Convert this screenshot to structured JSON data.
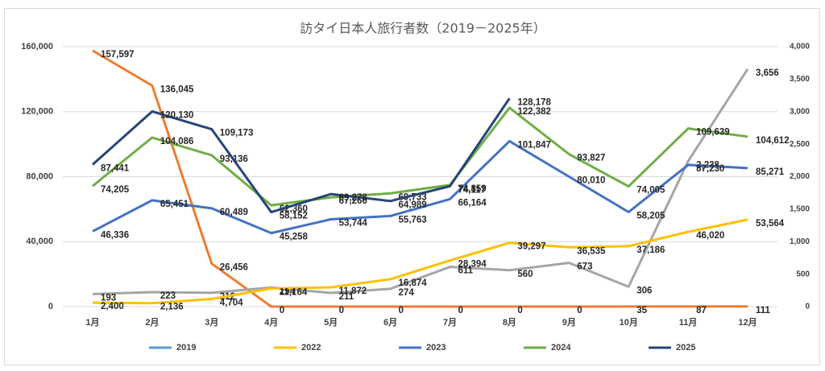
{
  "chart_data": {
    "type": "line",
    "title": "訪タイ日本人旅行者数（2019－2025年）",
    "categories": [
      "1月",
      "2月",
      "3月",
      "4月",
      "5月",
      "6月",
      "7月",
      "8月",
      "9月",
      "10月",
      "11月",
      "12月"
    ],
    "ylim": [
      0,
      160000
    ],
    "yticks": [
      0,
      {
        "value": 40000,
        "label": "40,000"
      },
      {
        "value": 80000,
        "label": "80,000"
      },
      {
        "value": 120000,
        "label": "120,000"
      },
      {
        "value": 160000,
        "label": "160,000"
      }
    ],
    "y2lim": [
      0,
      4000
    ],
    "y2ticks": [
      0,
      500,
      {
        "value": 1000,
        "label": "1,000"
      },
      {
        "value": 1500,
        "label": "1,500"
      },
      {
        "value": 2000,
        "label": "2,000"
      },
      {
        "value": 2500,
        "label": "2,500"
      },
      {
        "value": 3000,
        "label": "3,000"
      },
      {
        "value": 3500,
        "label": "3,500"
      },
      {
        "value": 4000,
        "label": "4,000"
      }
    ],
    "legend": "bottom",
    "series": [
      {
        "name": "2019",
        "color": "#5b9bd5",
        "values": [
          null,
          null,
          null,
          null,
          null,
          null,
          null,
          null,
          null,
          null,
          null,
          null
        ]
      },
      {
        "color": "#ed7d31",
        "values": [
          157597,
          136045,
          26456,
          0,
          0,
          0,
          0,
          0,
          0,
          35,
          87,
          111
        ],
        "value_labels": [
          "157,597",
          "136,045",
          "26,456",
          "0",
          "0",
          "0",
          "0",
          "0",
          "0",
          "35",
          "87",
          "111"
        ]
      },
      {
        "color": "#a5a5a5",
        "axis": "y2",
        "values": [
          193,
          223,
          212,
          294,
          211,
          274,
          611,
          560,
          673,
          306,
          2238,
          3656
        ],
        "value_labels": [
          "193",
          "223",
          "212",
          "294",
          "211",
          "274",
          "611",
          "560",
          "673",
          "306",
          "2,238",
          "3,656"
        ]
      },
      {
        "name": "2022",
        "color": "#ffc000",
        "values": [
          2400,
          2136,
          4704,
          11164,
          11872,
          16874,
          28394,
          39297,
          36535,
          37186,
          46020,
          53564
        ],
        "value_labels": [
          "2,400",
          "2,136",
          "4,704",
          "11,164",
          "11,872",
          "16,874",
          "28,394",
          "39,297",
          "36,535",
          "37,186",
          "46,020",
          "53,564"
        ]
      },
      {
        "name": "2023",
        "color": "#4472c4",
        "values": [
          46336,
          65451,
          60489,
          45258,
          53744,
          55763,
          66164,
          101847,
          80010,
          58205,
          87230,
          85271
        ],
        "value_labels": [
          "46,336",
          "65,451",
          "60,489",
          "45,258",
          "53,744",
          "55,763",
          "66,164",
          "101,847",
          "80,010",
          "58,205",
          "87,230",
          "85,271"
        ]
      },
      {
        "name": "2024",
        "color": "#70ad47",
        "values": [
          74205,
          104086,
          93136,
          62360,
          67266,
          69733,
          74859,
          122382,
          93827,
          74005,
          109639,
          104612
        ],
        "value_labels": [
          "74,205",
          "104,086",
          "93,136",
          "62,360",
          "67,266",
          "69,733",
          "74,859",
          "122,382",
          "93,827",
          "74,005",
          "109,639",
          "104,612"
        ]
      },
      {
        "name": "2025",
        "color": "#264478",
        "values": [
          87441,
          120130,
          109173,
          58152,
          69278,
          64989,
          74117,
          128178,
          null,
          null,
          null,
          null
        ],
        "value_labels": [
          "87,441",
          "120,130",
          "109,173",
          "58,152",
          "69,278",
          "64,989",
          "74,117",
          "128,178",
          null,
          null,
          null,
          null
        ]
      }
    ]
  }
}
